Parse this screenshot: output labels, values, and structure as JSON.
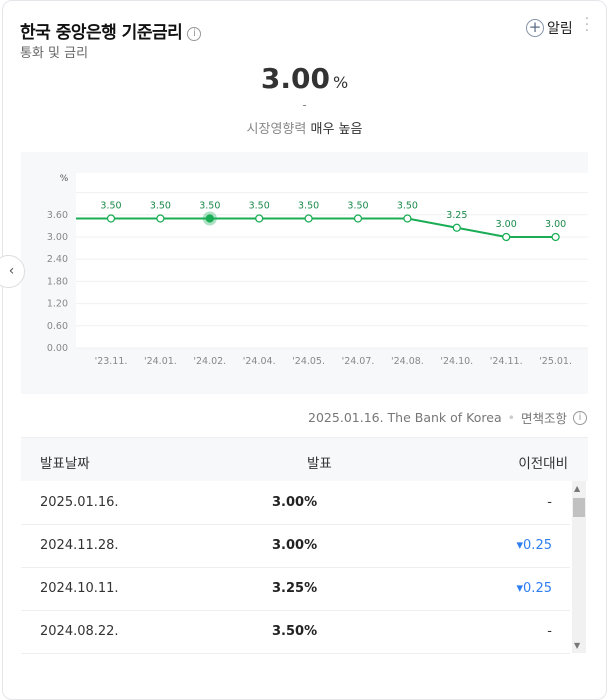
{
  "header": {
    "title": "한국 중앙은행 기준금리",
    "subtitle": "통화 및 금리",
    "alarm_label": "알림",
    "more": "⋮",
    "info": "i"
  },
  "summary": {
    "value": "3.00",
    "unit": "%",
    "change": "-",
    "impact_label": "시장영향력",
    "impact_value": "매우 높음"
  },
  "chart_data": {
    "type": "line",
    "y_unit": "%",
    "categories": [
      "'23.11.",
      "'24.01.",
      "'24.02.",
      "'24.04.",
      "'24.05.",
      "'24.07.",
      "'24.08.",
      "'24.10.",
      "'24.11.",
      "'25.01."
    ],
    "values": [
      3.5,
      3.5,
      3.5,
      3.5,
      3.5,
      3.5,
      3.5,
      3.25,
      3.0,
      3.0
    ],
    "labels": [
      "3.50",
      "3.50",
      "3.50",
      "3.50",
      "3.50",
      "3.50",
      "3.50",
      "3.25",
      "3.00",
      "3.00"
    ],
    "yticks": [
      "0.00",
      "0.60",
      "1.20",
      "1.80",
      "2.40",
      "3.00",
      "3.60"
    ],
    "ylim": [
      0,
      4.2
    ],
    "highlight_index": 2,
    "color": "#1aad55"
  },
  "source": {
    "text": "2025.01.16. The Bank of Korea",
    "disclaimer": "면책조항"
  },
  "table": {
    "headers": [
      "발표날짜",
      "발표",
      "이전대비"
    ],
    "rows": [
      {
        "date": "2025.01.16.",
        "value": "3.00%",
        "change": "-",
        "dir": ""
      },
      {
        "date": "2024.11.28.",
        "value": "3.00%",
        "change": "▾0.25",
        "dir": "down"
      },
      {
        "date": "2024.10.11.",
        "value": "3.25%",
        "change": "▾0.25",
        "dir": "down"
      },
      {
        "date": "2024.08.22.",
        "value": "3.50%",
        "change": "-",
        "dir": ""
      }
    ]
  }
}
